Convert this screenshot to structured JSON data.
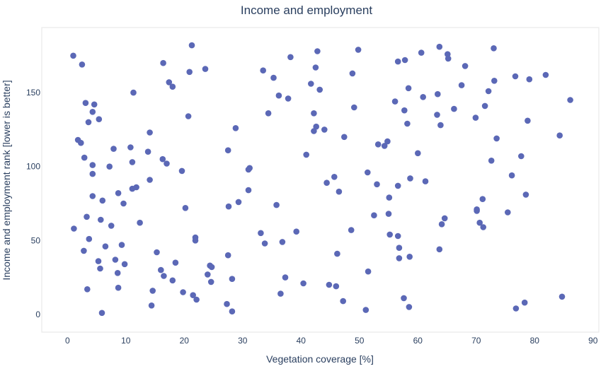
{
  "chart_data": {
    "type": "scatter",
    "title": "Income and employment",
    "xlabel": "Vegetation coverage [%]",
    "ylabel": "Income and employment rank [lower is better]",
    "xlim": [
      -4.4,
      91
    ],
    "ylim": [
      -12,
      194
    ],
    "xticks": [
      0,
      10,
      20,
      30,
      40,
      50,
      60,
      70,
      80,
      90
    ],
    "yticks": [
      0,
      50,
      100,
      150
    ],
    "grid": false,
    "legend": "none",
    "marker_color": "#5b68b6",
    "frame_color": "#e5e5e5",
    "points": [
      [
        1.0,
        175
      ],
      [
        2.5,
        169
      ],
      [
        1.8,
        118
      ],
      [
        2.3,
        116
      ],
      [
        2.9,
        106
      ],
      [
        3.1,
        143
      ],
      [
        3.6,
        130
      ],
      [
        4.3,
        137
      ],
      [
        4.6,
        142
      ],
      [
        5.4,
        132
      ],
      [
        4.3,
        101
      ],
      [
        4.3,
        95
      ],
      [
        4.3,
        80
      ],
      [
        6.0,
        77
      ],
      [
        3.3,
        66
      ],
      [
        5.7,
        64
      ],
      [
        7.2,
        100
      ],
      [
        7.9,
        112
      ],
      [
        8.7,
        82
      ],
      [
        9.6,
        75
      ],
      [
        7.5,
        60
      ],
      [
        1.1,
        58
      ],
      [
        2.8,
        43
      ],
      [
        3.7,
        51
      ],
      [
        5.3,
        36
      ],
      [
        5.6,
        31
      ],
      [
        6.5,
        46
      ],
      [
        8.2,
        37
      ],
      [
        8.6,
        28
      ],
      [
        9.3,
        47
      ],
      [
        9.8,
        34
      ],
      [
        3.4,
        17
      ],
      [
        8.7,
        18
      ],
      [
        5.9,
        1
      ],
      [
        10.8,
        113
      ],
      [
        11.1,
        103
      ],
      [
        11.3,
        150
      ],
      [
        11.1,
        85
      ],
      [
        11.8,
        86
      ],
      [
        12.4,
        62
      ],
      [
        13.8,
        110
      ],
      [
        14.1,
        123
      ],
      [
        14.1,
        91
      ],
      [
        14.4,
        6
      ],
      [
        14.6,
        16
      ],
      [
        15.3,
        42
      ],
      [
        16.0,
        30
      ],
      [
        16.5,
        26
      ],
      [
        16.3,
        105
      ],
      [
        17.0,
        102
      ],
      [
        16.4,
        170
      ],
      [
        17.4,
        157
      ],
      [
        18.0,
        154
      ],
      [
        18.0,
        23
      ],
      [
        18.5,
        35
      ],
      [
        19.6,
        97
      ],
      [
        19.8,
        15
      ],
      [
        20.2,
        72
      ],
      [
        20.7,
        134
      ],
      [
        20.9,
        164
      ],
      [
        21.3,
        182
      ],
      [
        21.5,
        13
      ],
      [
        21.9,
        52
      ],
      [
        21.9,
        50
      ],
      [
        22.1,
        10
      ],
      [
        23.6,
        166
      ],
      [
        24.0,
        27
      ],
      [
        24.4,
        33
      ],
      [
        24.7,
        32
      ],
      [
        24.6,
        22
      ],
      [
        27.5,
        111
      ],
      [
        27.5,
        40
      ],
      [
        27.6,
        73
      ],
      [
        27.3,
        7
      ],
      [
        28.2,
        24
      ],
      [
        28.2,
        2
      ],
      [
        28.8,
        126
      ],
      [
        29.3,
        76
      ],
      [
        31.0,
        98
      ],
      [
        31.2,
        99
      ],
      [
        31.0,
        84
      ],
      [
        33.1,
        55
      ],
      [
        33.5,
        165
      ],
      [
        33.8,
        48
      ],
      [
        34.4,
        136
      ],
      [
        35.3,
        160
      ],
      [
        35.8,
        74
      ],
      [
        36.2,
        148
      ],
      [
        36.5,
        14
      ],
      [
        36.8,
        49
      ],
      [
        37.3,
        25
      ],
      [
        37.8,
        146
      ],
      [
        38.2,
        174
      ],
      [
        39.2,
        56
      ],
      [
        40.4,
        21
      ],
      [
        40.9,
        108
      ],
      [
        41.7,
        156
      ],
      [
        42.2,
        136
      ],
      [
        42.2,
        124
      ],
      [
        42.5,
        167
      ],
      [
        42.6,
        127
      ],
      [
        42.8,
        178
      ],
      [
        43.2,
        152
      ],
      [
        44.0,
        125
      ],
      [
        44.4,
        89
      ],
      [
        44.8,
        20
      ],
      [
        45.7,
        93
      ],
      [
        46.0,
        19
      ],
      [
        46.2,
        41
      ],
      [
        46.5,
        83
      ],
      [
        47.2,
        9
      ],
      [
        47.4,
        120
      ],
      [
        48.6,
        57
      ],
      [
        48.8,
        163
      ],
      [
        49.1,
        140
      ],
      [
        49.8,
        179
      ],
      [
        51.1,
        3
      ],
      [
        51.4,
        96
      ],
      [
        51.5,
        29
      ],
      [
        52.5,
        67
      ],
      [
        53.0,
        88
      ],
      [
        53.2,
        115
      ],
      [
        54.3,
        114
      ],
      [
        54.8,
        117
      ],
      [
        55.0,
        68
      ],
      [
        55.1,
        79
      ],
      [
        55.2,
        54
      ],
      [
        56.1,
        144
      ],
      [
        56.6,
        53
      ],
      [
        56.6,
        171
      ],
      [
        56.6,
        87
      ],
      [
        56.8,
        45
      ],
      [
        56.8,
        38
      ],
      [
        57.6,
        11
      ],
      [
        57.7,
        138
      ],
      [
        57.8,
        172
      ],
      [
        58.2,
        129
      ],
      [
        58.4,
        153
      ],
      [
        58.5,
        5
      ],
      [
        58.7,
        92
      ],
      [
        58.6,
        39
      ],
      [
        60.0,
        109
      ],
      [
        60.6,
        177
      ],
      [
        60.9,
        147
      ],
      [
        61.3,
        90
      ],
      [
        63.3,
        135
      ],
      [
        63.4,
        149
      ],
      [
        63.7,
        44
      ],
      [
        63.7,
        181
      ],
      [
        63.9,
        128
      ],
      [
        64.1,
        61
      ],
      [
        64.6,
        65
      ],
      [
        65.1,
        176
      ],
      [
        65.2,
        173
      ],
      [
        66.2,
        139
      ],
      [
        67.5,
        155
      ],
      [
        68.1,
        168
      ],
      [
        69.9,
        133
      ],
      [
        70.1,
        71
      ],
      [
        70.1,
        70
      ],
      [
        70.6,
        62
      ],
      [
        71.2,
        59
      ],
      [
        71.1,
        78
      ],
      [
        71.5,
        141
      ],
      [
        72.1,
        151
      ],
      [
        72.6,
        104
      ],
      [
        73.0,
        180
      ],
      [
        73.1,
        158
      ],
      [
        73.5,
        119
      ],
      [
        75.4,
        69
      ],
      [
        76.1,
        94
      ],
      [
        76.7,
        161
      ],
      [
        76.8,
        4
      ],
      [
        77.7,
        107
      ],
      [
        78.3,
        8
      ],
      [
        78.5,
        81
      ],
      [
        78.8,
        131
      ],
      [
        79.1,
        159
      ],
      [
        81.9,
        162
      ],
      [
        84.3,
        121
      ],
      [
        84.7,
        12
      ],
      [
        86.1,
        145
      ]
    ]
  }
}
